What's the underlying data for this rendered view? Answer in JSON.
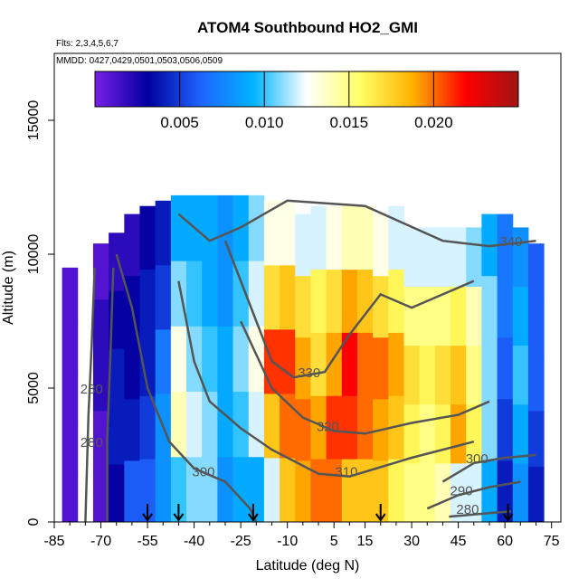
{
  "chart_data": {
    "type": "heatmap",
    "title": "ATOM4 Southbound HO2_GMI",
    "flights_text": "Flts: 2,3,4,5,6,7",
    "dates_text": "MMDD: 0427,0429,0501,0503,0506,0509",
    "xlabel": "Latitude (deg N)",
    "ylabel": "Altitude (m)",
    "xlim": [
      -85,
      78
    ],
    "ylim": [
      0,
      17500
    ],
    "x_ticks": [
      "-85",
      "-70",
      "-55",
      "-40",
      "-25",
      "-10",
      "5",
      "15",
      "30",
      "45",
      "60",
      "75"
    ],
    "y_ticks": [
      "0",
      "5000",
      "10000",
      "15000"
    ],
    "colorbar": {
      "range": [
        0,
        0.025
      ],
      "tick_values": [
        0.005,
        0.01,
        0.015,
        0.02
      ],
      "tick_labels": [
        "0.005",
        "0.010",
        "0.015",
        "0.020"
      ],
      "colors": [
        "#7a1ee8",
        "#0000a0",
        "#1e64ff",
        "#00b4ff",
        "#ffffff",
        "#ffff66",
        "#ffb300",
        "#ff0000",
        "#a01414"
      ]
    },
    "columns": [
      {
        "lat": -80,
        "top": 9500,
        "z": [
          0.001,
          0.001,
          0.001,
          0.001,
          0.001
        ]
      },
      {
        "lat": -70,
        "top": 10400,
        "z": [
          0.001,
          0.001,
          0.002,
          0.002,
          0.001
        ]
      },
      {
        "lat": -65,
        "top": 10800,
        "z": [
          0.003,
          0.004,
          0.004,
          0.003,
          0.002
        ]
      },
      {
        "lat": -60,
        "top": 11500,
        "z": [
          0.006,
          0.004,
          0.003,
          0.003,
          0.002
        ]
      },
      {
        "lat": -55,
        "top": 11800,
        "z": [
          0.006,
          0.005,
          0.004,
          0.004,
          0.003
        ]
      },
      {
        "lat": -50,
        "top": 12000,
        "z": [
          0.008,
          0.008,
          0.007,
          0.005,
          0.004
        ]
      },
      {
        "lat": -45,
        "top": 12200,
        "z": [
          0.01,
          0.014,
          0.013,
          0.011,
          0.009
        ]
      },
      {
        "lat": -40,
        "top": 12200,
        "z": [
          0.011,
          0.012,
          0.011,
          0.01,
          0.009
        ]
      },
      {
        "lat": -35,
        "top": 12200,
        "z": [
          0.011,
          0.011,
          0.01,
          0.009,
          0.009
        ]
      },
      {
        "lat": -30,
        "top": 12200,
        "z": [
          0.008,
          0.009,
          0.009,
          0.008,
          0.008
        ]
      },
      {
        "lat": -25,
        "top": 12200,
        "z": [
          0.009,
          0.01,
          0.011,
          0.01,
          0.009
        ]
      },
      {
        "lat": -20,
        "top": 12200,
        "z": [
          0.009,
          0.012,
          0.013,
          0.012,
          0.011
        ]
      },
      {
        "lat": -15,
        "top": 12000,
        "z": [
          0.012,
          0.018,
          0.021,
          0.017,
          0.013
        ]
      },
      {
        "lat": -10,
        "top": 12000,
        "z": [
          0.018,
          0.02,
          0.021,
          0.018,
          0.013
        ]
      },
      {
        "lat": -5,
        "top": 11500,
        "z": [
          0.019,
          0.02,
          0.019,
          0.017,
          0.012
        ]
      },
      {
        "lat": 0,
        "top": 11800,
        "z": [
          0.02,
          0.019,
          0.017,
          0.016,
          0.012
        ]
      },
      {
        "lat": 5,
        "top": 11800,
        "z": [
          0.02,
          0.021,
          0.019,
          0.017,
          0.013
        ]
      },
      {
        "lat": 10,
        "top": 11800,
        "z": [
          0.018,
          0.021,
          0.022,
          0.019,
          0.014
        ]
      },
      {
        "lat": 15,
        "top": 11800,
        "z": [
          0.018,
          0.02,
          0.02,
          0.018,
          0.014
        ]
      },
      {
        "lat": 20,
        "top": 11500,
        "z": [
          0.018,
          0.019,
          0.02,
          0.017,
          0.013
        ]
      },
      {
        "lat": 25,
        "top": 11800,
        "z": [
          0.016,
          0.018,
          0.019,
          0.016,
          0.012
        ]
      },
      {
        "lat": 30,
        "top": 11000,
        "z": [
          0.015,
          0.016,
          0.017,
          0.015,
          0.012
        ]
      },
      {
        "lat": 35,
        "top": 11000,
        "z": [
          0.015,
          0.015,
          0.016,
          0.015,
          0.012
        ]
      },
      {
        "lat": 40,
        "top": 11000,
        "z": [
          0.014,
          0.016,
          0.017,
          0.015,
          0.012
        ]
      },
      {
        "lat": 45,
        "top": 11000,
        "z": [
          0.012,
          0.019,
          0.018,
          0.016,
          0.012
        ]
      },
      {
        "lat": 50,
        "top": 11000,
        "z": [
          0.012,
          0.016,
          0.015,
          0.014,
          0.011
        ]
      },
      {
        "lat": 55,
        "top": 11500,
        "z": [
          0.009,
          0.011,
          0.011,
          0.011,
          0.009
        ]
      },
      {
        "lat": 60,
        "top": 11500,
        "z": [
          0.004,
          0.005,
          0.006,
          0.007,
          0.007
        ]
      },
      {
        "lat": 65,
        "top": 11000,
        "z": [
          0.008,
          0.009,
          0.01,
          0.009,
          0.008
        ]
      },
      {
        "lat": 70,
        "top": 10400,
        "z": [
          0.004,
          0.005,
          0.006,
          0.006,
          0.006
        ]
      }
    ],
    "contours": [
      {
        "label": "280",
        "label_at": [
          -73,
          4800
        ],
        "points": [
          [
            -75,
            0
          ],
          [
            -74,
            4000
          ],
          [
            -73,
            6500
          ],
          [
            -72,
            9500
          ]
        ]
      },
      {
        "label": "280",
        "label_at": [
          -73,
          2800
        ],
        "points": [
          [
            -68,
            0
          ],
          [
            -68,
            3000
          ],
          [
            -67,
            6000
          ],
          [
            -66,
            9500
          ]
        ]
      },
      {
        "label": "300",
        "label_at": [
          -37,
          1700
        ],
        "points": [
          [
            -65,
            10000
          ],
          [
            -60,
            8000
          ],
          [
            -55,
            5000
          ],
          [
            -48,
            3000
          ],
          [
            -40,
            2000
          ],
          [
            -30,
            1500
          ],
          [
            -22,
            500
          ],
          [
            -20,
            0
          ]
        ]
      },
      {
        "label": "310",
        "label_at": [
          9,
          1700
        ],
        "points": [
          [
            -45,
            9000
          ],
          [
            -40,
            6000
          ],
          [
            -35,
            4500
          ],
          [
            -25,
            3500
          ],
          [
            -15,
            2700
          ],
          [
            0,
            1800
          ],
          [
            10,
            1700
          ],
          [
            30,
            2400
          ],
          [
            50,
            3000
          ]
        ]
      },
      {
        "label": "320",
        "label_at": [
          3,
          3400
        ],
        "points": [
          [
            -25,
            7500
          ],
          [
            -15,
            5000
          ],
          [
            -5,
            3900
          ],
          [
            5,
            3400
          ],
          [
            15,
            3300
          ],
          [
            30,
            3700
          ],
          [
            45,
            4000
          ],
          [
            55,
            4500
          ]
        ]
      },
      {
        "label": "330",
        "label_at": [
          -3,
          5400
        ],
        "points": [
          [
            -30,
            10500
          ],
          [
            -20,
            7500
          ],
          [
            -15,
            6000
          ],
          [
            -8,
            5400
          ],
          [
            2,
            5600
          ],
          [
            10,
            7000
          ],
          [
            20,
            8500
          ],
          [
            30,
            8000
          ],
          [
            40,
            8500
          ],
          [
            50,
            9000
          ]
        ]
      },
      {
        "label": "340",
        "label_at": [
          62,
          10300
        ],
        "points": [
          [
            -45,
            11500
          ],
          [
            -35,
            10500
          ],
          [
            -25,
            11000
          ],
          [
            -10,
            12000
          ],
          [
            15,
            11800
          ],
          [
            40,
            10500
          ],
          [
            55,
            10300
          ],
          [
            70,
            10500
          ]
        ]
      },
      {
        "label": "300",
        "label_at": [
          51,
          2200
        ],
        "points": [
          [
            40,
            1500
          ],
          [
            50,
            2200
          ],
          [
            60,
            2400
          ],
          [
            70,
            2500
          ]
        ]
      },
      {
        "label": "290",
        "label_at": [
          46,
          1000
        ],
        "points": [
          [
            35,
            500
          ],
          [
            45,
            1000
          ],
          [
            55,
            1300
          ],
          [
            65,
            1500
          ]
        ]
      },
      {
        "label": "280",
        "label_at": [
          48,
          300
        ],
        "points": [
          [
            42,
            200
          ],
          [
            52,
            300
          ],
          [
            62,
            400
          ]
        ]
      }
    ],
    "flight_markers": [
      -55,
      -45,
      -21,
      20,
      61
    ],
    "grid": false,
    "legend": "top"
  }
}
